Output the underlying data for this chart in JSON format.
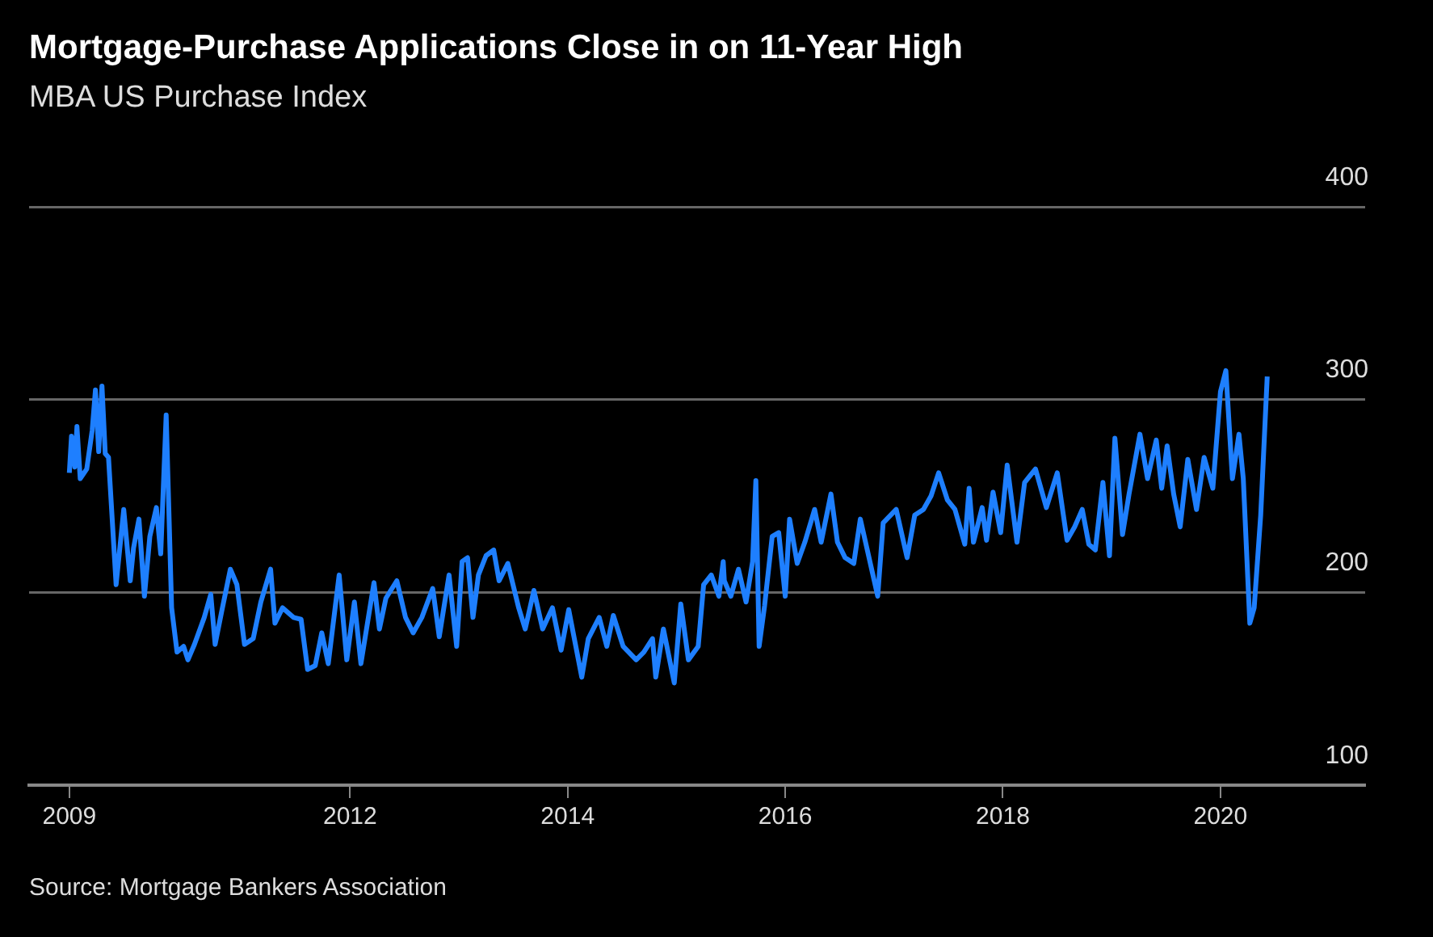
{
  "chart_data": {
    "type": "line",
    "title": "Mortgage-Purchase Applications Close in on 11-Year High",
    "subtitle": "MBA US Purchase Index",
    "annotations": [
      "Source: Mortgage Bankers Association"
    ],
    "xlim": [
      2009.05,
      2021.33
    ],
    "xticks": [
      {
        "value": 2009.42,
        "label": "2009"
      },
      2012,
      2014,
      2016,
      2018,
      2020
    ],
    "ylim": [
      100,
      400
    ],
    "yticks": [
      100,
      200,
      300,
      400
    ],
    "grid": "y",
    "legend": false,
    "marker": "none",
    "line_style": "solid",
    "series": [
      {
        "color": "#1e7fff",
        "x": [
          2009.42,
          2009.44,
          2009.47,
          2009.49,
          2009.52,
          2009.58,
          2009.63,
          2009.66,
          2009.69,
          2009.72,
          2009.75,
          2009.78,
          2009.85,
          2009.92,
          2009.98,
          2010.01,
          2010.06,
          2010.11,
          2010.16,
          2010.22,
          2010.26,
          2010.31,
          2010.36,
          2010.41,
          2010.47,
          2010.51,
          2010.57,
          2010.66,
          2010.72,
          2010.76,
          2010.82,
          2010.9,
          2010.96,
          2011.03,
          2011.11,
          2011.18,
          2011.27,
          2011.31,
          2011.38,
          2011.48,
          2011.55,
          2011.61,
          2011.68,
          2011.74,
          2011.8,
          2011.9,
          2011.97,
          2012.04,
          2012.1,
          2012.22,
          2012.27,
          2012.33,
          2012.43,
          2012.51,
          2012.58,
          2012.66,
          2012.76,
          2012.82,
          2012.91,
          2012.98,
          2013.03,
          2013.08,
          2013.13,
          2013.18,
          2013.25,
          2013.32,
          2013.37,
          2013.45,
          2013.55,
          2013.61,
          2013.69,
          2013.77,
          2013.86,
          2013.94,
          2014.01,
          2014.13,
          2014.19,
          2014.29,
          2014.36,
          2014.42,
          2014.51,
          2014.63,
          2014.7,
          2014.78,
          2014.81,
          2014.88,
          2014.98,
          2015.04,
          2015.11,
          2015.2,
          2015.25,
          2015.32,
          2015.39,
          2015.43,
          2015.44,
          2015.5,
          2015.57,
          2015.64,
          2015.7,
          2015.73,
          2015.76,
          2015.81,
          2015.88,
          2015.94,
          2016,
          2016.04,
          2016.11,
          2016.18,
          2016.27,
          2016.33,
          2016.42,
          2016.48,
          2016.55,
          2016.63,
          2016.69,
          2016.75,
          2016.85,
          2016.9,
          2017.02,
          2017.12,
          2017.19,
          2017.27,
          2017.34,
          2017.41,
          2017.49,
          2017.56,
          2017.65,
          2017.69,
          2017.73,
          2017.81,
          2017.85,
          2017.91,
          2017.98,
          2018.04,
          2018.13,
          2018.2,
          2018.3,
          2018.4,
          2018.5,
          2018.59,
          2018.66,
          2018.73,
          2018.79,
          2018.85,
          2018.92,
          2018.98,
          2019.03,
          2019.1,
          2019.16,
          2019.26,
          2019.33,
          2019.41,
          2019.46,
          2019.51,
          2019.57,
          2019.63,
          2019.7,
          2019.78,
          2019.85,
          2019.93,
          2020,
          2020.05,
          2020.11,
          2020.17,
          2020.21,
          2020.27,
          2020.31,
          2020.37,
          2020.43
        ],
        "values": [
          262,
          281,
          265,
          286,
          259,
          264,
          284,
          305,
          273,
          307,
          272,
          270,
          204,
          243,
          206,
          223,
          238,
          198,
          229,
          244,
          220,
          292,
          192,
          169,
          172,
          165,
          173,
          187,
          199,
          173,
          190,
          212,
          204,
          173,
          176,
          195,
          212,
          184,
          192,
          187,
          186,
          160,
          162,
          179,
          163,
          209,
          165,
          195,
          163,
          205,
          181,
          197,
          206,
          187,
          179,
          187,
          202,
          177,
          209,
          172,
          216,
          218,
          187,
          209,
          219,
          222,
          206,
          215,
          192,
          181,
          201,
          181,
          192,
          170,
          191,
          156,
          176,
          187,
          172,
          188,
          172,
          165,
          169,
          176,
          156,
          181,
          153,
          194,
          165,
          172,
          204,
          209,
          198,
          216,
          206,
          198,
          212,
          195,
          216,
          258,
          172,
          193,
          229,
          231,
          198,
          238,
          215,
          226,
          243,
          226,
          251,
          226,
          218,
          215,
          238,
          223,
          198,
          236,
          243,
          218,
          240,
          243,
          250,
          262,
          248,
          243,
          225,
          254,
          226,
          244,
          227,
          252,
          231,
          266,
          226,
          257,
          264,
          244,
          262,
          227,
          234,
          243,
          225,
          222,
          257,
          219,
          280,
          230,
          251,
          282,
          259,
          279,
          254,
          276,
          251,
          234,
          269,
          243,
          270,
          254,
          304,
          315,
          259,
          282,
          259,
          184,
          192,
          240,
          312
        ]
      }
    ]
  }
}
